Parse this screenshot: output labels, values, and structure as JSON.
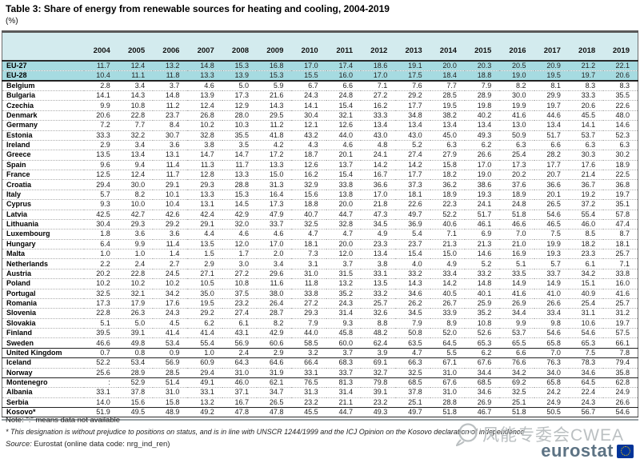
{
  "title": "Table 3: Share of energy from renewable sources for heating and cooling, 2004-2019",
  "unit": "(%)",
  "chart_data": {
    "type": "table",
    "title": "Table 3: Share of energy from renewable sources for heating and cooling, 2004-2019",
    "unit_label": "(%)",
    "years": [
      "2004",
      "2005",
      "2006",
      "2007",
      "2008",
      "2009",
      "2010",
      "2011",
      "2012",
      "2013",
      "2014",
      "2015",
      "2016",
      "2017",
      "2018",
      "2019"
    ],
    "rows": [
      {
        "name": "EU-27",
        "group": "eu",
        "values": [
          "11.7",
          "12.4",
          "13.2",
          "14.8",
          "15.3",
          "16.8",
          "17.0",
          "17.4",
          "18.6",
          "19.1",
          "20.0",
          "20.3",
          "20.5",
          "20.9",
          "21.2",
          "22.1"
        ]
      },
      {
        "name": "EU-28",
        "group": "eu",
        "sep_below": true,
        "values": [
          "10.4",
          "11.1",
          "11.8",
          "13.3",
          "13.9",
          "15.3",
          "15.5",
          "16.0",
          "17.0",
          "17.5",
          "18.4",
          "18.8",
          "19.0",
          "19.5",
          "19.7",
          "20.6"
        ]
      },
      {
        "name": "Belgium",
        "group": "member",
        "values": [
          "2.8",
          "3.4",
          "3.7",
          "4.6",
          "5.0",
          "5.9",
          "6.7",
          "6.6",
          "7.1",
          "7.6",
          "7.7",
          "7.9",
          "8.2",
          "8.1",
          "8.3",
          "8.3"
        ]
      },
      {
        "name": "Bulgaria",
        "group": "member",
        "values": [
          "14.1",
          "14.3",
          "14.8",
          "13.9",
          "17.3",
          "21.6",
          "24.3",
          "24.8",
          "27.2",
          "29.2",
          "28.5",
          "28.9",
          "30.0",
          "29.9",
          "33.3",
          "35.5"
        ]
      },
      {
        "name": "Czechia",
        "group": "member",
        "values": [
          "9.9",
          "10.8",
          "11.2",
          "12.4",
          "12.9",
          "14.3",
          "14.1",
          "15.4",
          "16.2",
          "17.7",
          "19.5",
          "19.8",
          "19.9",
          "19.7",
          "20.6",
          "22.6"
        ]
      },
      {
        "name": "Denmark",
        "group": "member",
        "values": [
          "20.6",
          "22.8",
          "23.7",
          "26.8",
          "28.0",
          "29.5",
          "30.4",
          "32.1",
          "33.3",
          "34.8",
          "38.2",
          "40.2",
          "41.6",
          "44.6",
          "45.5",
          "48.0"
        ]
      },
      {
        "name": "Germany",
        "group": "member",
        "values": [
          "7.2",
          "7.7",
          "8.4",
          "10.2",
          "10.3",
          "11.2",
          "12.1",
          "12.6",
          "13.4",
          "13.4",
          "13.4",
          "13.4",
          "13.0",
          "13.4",
          "14.1",
          "14.6"
        ]
      },
      {
        "name": "Estonia",
        "group": "member",
        "values": [
          "33.3",
          "32.2",
          "30.7",
          "32.8",
          "35.5",
          "41.8",
          "43.2",
          "44.0",
          "43.0",
          "43.0",
          "45.0",
          "49.3",
          "50.9",
          "51.7",
          "53.7",
          "52.3"
        ]
      },
      {
        "name": "Ireland",
        "group": "member",
        "values": [
          "2.9",
          "3.4",
          "3.6",
          "3.8",
          "3.5",
          "4.2",
          "4.3",
          "4.6",
          "4.8",
          "5.2",
          "6.3",
          "6.2",
          "6.3",
          "6.6",
          "6.3",
          "6.3"
        ]
      },
      {
        "name": "Greece",
        "group": "member",
        "values": [
          "13.5",
          "13.4",
          "13.1",
          "14.7",
          "14.7",
          "17.2",
          "18.7",
          "20.1",
          "24.1",
          "27.4",
          "27.9",
          "26.6",
          "25.4",
          "28.2",
          "30.3",
          "30.2"
        ]
      },
      {
        "name": "Spain",
        "group": "member",
        "values": [
          "9.6",
          "9.4",
          "11.4",
          "11.3",
          "11.7",
          "13.3",
          "12.6",
          "13.7",
          "14.2",
          "14.2",
          "15.8",
          "17.0",
          "17.3",
          "17.7",
          "17.6",
          "18.9"
        ]
      },
      {
        "name": "France",
        "group": "member",
        "values": [
          "12.5",
          "12.4",
          "11.7",
          "12.8",
          "13.3",
          "15.0",
          "16.2",
          "15.4",
          "16.7",
          "17.7",
          "18.2",
          "19.0",
          "20.2",
          "20.7",
          "21.4",
          "22.5"
        ]
      },
      {
        "name": "Croatia",
        "group": "member",
        "values": [
          "29.4",
          "30.0",
          "29.1",
          "29.3",
          "28.8",
          "31.3",
          "32.9",
          "33.8",
          "36.6",
          "37.3",
          "36.2",
          "38.6",
          "37.6",
          "36.6",
          "36.7",
          "36.8"
        ]
      },
      {
        "name": "Italy",
        "group": "member",
        "values": [
          "5.7",
          "8.2",
          "10.1",
          "13.3",
          "15.3",
          "16.4",
          "15.6",
          "13.8",
          "17.0",
          "18.1",
          "18.9",
          "19.3",
          "18.9",
          "20.1",
          "19.2",
          "19.7"
        ]
      },
      {
        "name": "Cyprus",
        "group": "member",
        "values": [
          "9.3",
          "10.0",
          "10.4",
          "13.1",
          "14.5",
          "17.3",
          "18.8",
          "20.0",
          "21.8",
          "22.6",
          "22.3",
          "24.1",
          "24.8",
          "26.5",
          "37.2",
          "35.1"
        ]
      },
      {
        "name": "Latvia",
        "group": "member",
        "values": [
          "42.5",
          "42.7",
          "42.6",
          "42.4",
          "42.9",
          "47.9",
          "40.7",
          "44.7",
          "47.3",
          "49.7",
          "52.2",
          "51.7",
          "51.8",
          "54.6",
          "55.4",
          "57.8"
        ]
      },
      {
        "name": "Lithuania",
        "group": "member",
        "values": [
          "30.4",
          "29.3",
          "29.2",
          "29.1",
          "32.0",
          "33.7",
          "32.5",
          "32.8",
          "34.5",
          "36.9",
          "40.6",
          "46.1",
          "46.6",
          "46.5",
          "46.0",
          "47.4"
        ]
      },
      {
        "name": "Luxembourg",
        "group": "member",
        "values": [
          "1.8",
          "3.6",
          "3.6",
          "4.4",
          "4.6",
          "4.6",
          "4.7",
          "4.7",
          "4.9",
          "5.4",
          "7.1",
          "6.9",
          "7.0",
          "7.5",
          "8.5",
          "8.7"
        ]
      },
      {
        "name": "Hungary",
        "group": "member",
        "values": [
          "6.4",
          "9.9",
          "11.4",
          "13.5",
          "12.0",
          "17.0",
          "18.1",
          "20.0",
          "23.3",
          "23.7",
          "21.3",
          "21.3",
          "21.0",
          "19.9",
          "18.2",
          "18.1"
        ]
      },
      {
        "name": "Malta",
        "group": "member",
        "values": [
          "1.0",
          "1.0",
          "1.4",
          "1.5",
          "1.7",
          "2.0",
          "7.3",
          "12.0",
          "13.4",
          "15.4",
          "15.0",
          "14.6",
          "16.9",
          "19.3",
          "23.3",
          "25.7"
        ]
      },
      {
        "name": "Netherlands",
        "group": "member",
        "values": [
          "2.2",
          "2.4",
          "2.7",
          "2.9",
          "3.0",
          "3.4",
          "3.1",
          "3.7",
          "3.8",
          "4.0",
          "4.9",
          "5.2",
          "5.1",
          "5.7",
          "6.1",
          "7.1"
        ]
      },
      {
        "name": "Austria",
        "group": "member",
        "values": [
          "20.2",
          "22.8",
          "24.5",
          "27.1",
          "27.2",
          "29.6",
          "31.0",
          "31.5",
          "33.1",
          "33.2",
          "33.4",
          "33.2",
          "33.5",
          "33.7",
          "34.2",
          "33.8"
        ]
      },
      {
        "name": "Poland",
        "group": "member",
        "values": [
          "10.2",
          "10.2",
          "10.2",
          "10.5",
          "10.8",
          "11.6",
          "11.8",
          "13.2",
          "13.5",
          "14.3",
          "14.2",
          "14.8",
          "14.9",
          "14.9",
          "15.1",
          "16.0"
        ]
      },
      {
        "name": "Portugal",
        "group": "member",
        "values": [
          "32.5",
          "32.1",
          "34.2",
          "35.0",
          "37.5",
          "38.0",
          "33.8",
          "35.2",
          "33.2",
          "34.6",
          "40.5",
          "40.1",
          "41.6",
          "41.0",
          "40.9",
          "41.6"
        ]
      },
      {
        "name": "Romania",
        "group": "member",
        "values": [
          "17.3",
          "17.9",
          "17.6",
          "19.5",
          "23.2",
          "26.4",
          "27.2",
          "24.3",
          "25.7",
          "26.2",
          "26.7",
          "25.9",
          "26.9",
          "26.6",
          "25.4",
          "25.7"
        ]
      },
      {
        "name": "Slovenia",
        "group": "member",
        "values": [
          "22.8",
          "26.3",
          "24.3",
          "29.2",
          "27.4",
          "28.7",
          "29.3",
          "31.4",
          "32.6",
          "34.5",
          "33.9",
          "35.2",
          "34.4",
          "33.4",
          "31.1",
          "31.2"
        ]
      },
      {
        "name": "Slovakia",
        "group": "member",
        "values": [
          "5.1",
          "5.0",
          "4.5",
          "6.2",
          "6.1",
          "8.2",
          "7.9",
          "9.3",
          "8.8",
          "7.9",
          "8.9",
          "10.8",
          "9.9",
          "9.8",
          "10.6",
          "19.7"
        ]
      },
      {
        "name": "Finland",
        "group": "member",
        "values": [
          "39.5",
          "39.1",
          "41.4",
          "41.4",
          "43.1",
          "42.9",
          "44.0",
          "45.8",
          "48.2",
          "50.8",
          "52.0",
          "52.6",
          "53.7",
          "54.6",
          "54.6",
          "57.5"
        ]
      },
      {
        "name": "Sweden",
        "group": "member",
        "values": [
          "46.6",
          "49.8",
          "53.4",
          "55.4",
          "56.9",
          "60.6",
          "58.5",
          "60.0",
          "62.4",
          "63.5",
          "64.5",
          "65.3",
          "65.5",
          "65.8",
          "65.3",
          "66.1"
        ]
      },
      {
        "name": "United Kingdom",
        "group": "uk",
        "sep_above": true,
        "values": [
          "0.7",
          "0.8",
          "0.9",
          "1.0",
          "2.4",
          "2.9",
          "3.2",
          "3.7",
          "3.9",
          "4.7",
          "5.5",
          "6.2",
          "6.6",
          "7.0",
          "7.5",
          "7.8"
        ]
      },
      {
        "name": "Iceland",
        "group": "efta",
        "sep_above": true,
        "values": [
          "52.2",
          "53.4",
          "56.9",
          "60.9",
          "64.3",
          "64.6",
          "66.4",
          "68.3",
          "69.1",
          "66.3",
          "67.1",
          "67.6",
          "76.6",
          "76.3",
          "78.3",
          "79.4"
        ]
      },
      {
        "name": "Norway",
        "group": "efta",
        "values": [
          "25.6",
          "28.9",
          "28.5",
          "29.4",
          "31.0",
          "31.9",
          "33.1",
          "33.7",
          "32.7",
          "32.5",
          "31.0",
          "34.4",
          "34.2",
          "34.0",
          "34.6",
          "35.8"
        ]
      },
      {
        "name": "Montenegro",
        "group": "candidate",
        "sep_above": true,
        "values": [
          ":",
          "52.9",
          "51.4",
          "49.1",
          "46.0",
          "62.1",
          "76.5",
          "81.3",
          "79.8",
          "68.5",
          "67.6",
          "68.5",
          "69.2",
          "65.8",
          "64.5",
          "62.8"
        ]
      },
      {
        "name": "Albania",
        "group": "candidate",
        "values": [
          "33.1",
          "37.8",
          "31.0",
          "33.1",
          "37.1",
          "34.7",
          "31.3",
          "31.4",
          "39.1",
          "37.8",
          "31.0",
          "34.6",
          "32.5",
          "24.2",
          "22.4",
          "24.9"
        ]
      },
      {
        "name": "Serbia",
        "group": "candidate",
        "values": [
          "14.0",
          "15.6",
          "15.8",
          "13.2",
          "16.7",
          "26.5",
          "23.2",
          "21.1",
          "23.2",
          "25.1",
          "28.8",
          "26.9",
          "25.1",
          "24.9",
          "24.3",
          "26.6"
        ]
      },
      {
        "name": "Kosovo*",
        "group": "kosovo",
        "sep_above": true,
        "values": [
          "51.9",
          "49.5",
          "48.9",
          "49.2",
          "47.8",
          "47.8",
          "45.5",
          "44.7",
          "49.3",
          "49.7",
          "51.8",
          "46.7",
          "51.8",
          "50.5",
          "56.7",
          "54.6"
        ]
      }
    ]
  },
  "footer": {
    "note": "Note: \":\" means data not available",
    "footnote": "* This designation is without prejudice to positions on status, and is in line with UNSCR 1244/1999 and the ICJ Opinion on the Kosovo declaration of independence",
    "source_label": "Source:",
    "source_text": "Eurostat (online data code: nrg_ind_ren)"
  },
  "watermark": {
    "text": "风能专委会CWEA"
  },
  "logo": {
    "wordmark": "eurostat"
  },
  "colors": {
    "header_bg": "#d3ebee",
    "eu_row_bg": "#a6dbe1",
    "eu_flag_blue": "#003399",
    "star_yellow": "#ffcc00",
    "logo_text": "#5d7384",
    "watermark_gray": "#b6bbbd"
  }
}
